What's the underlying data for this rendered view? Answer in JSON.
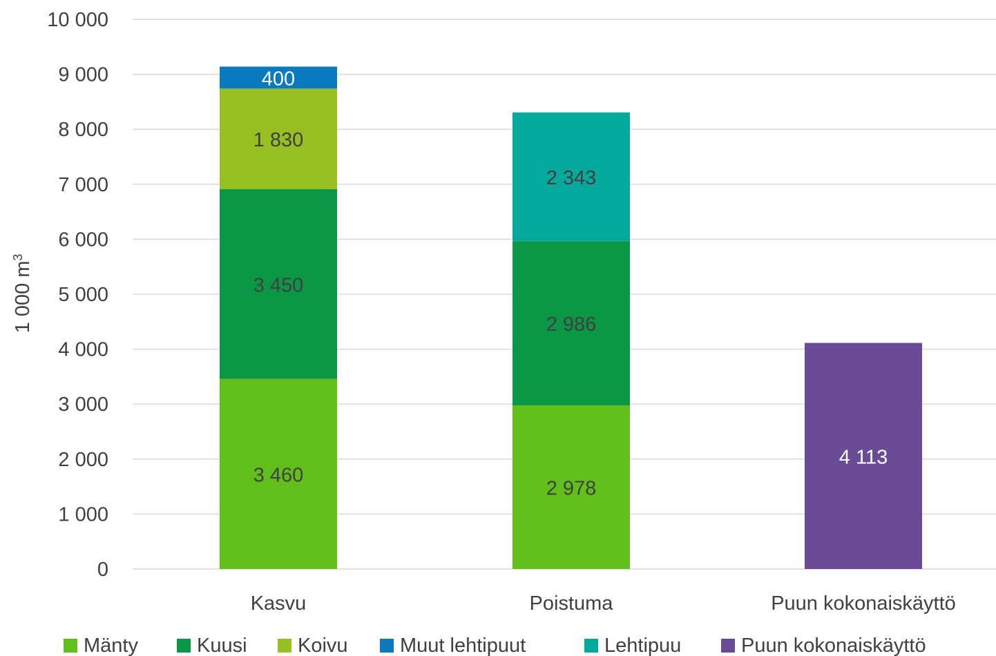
{
  "chart_data": {
    "type": "bar",
    "stacked": true,
    "categories": [
      "Kasvu",
      "Poistuma",
      "Puun kokonaiskäyttö"
    ],
    "ylabel": "1 000 m",
    "ylabel_superscript": "3",
    "ylim": [
      0,
      10000
    ],
    "yticks": [
      0,
      1000,
      2000,
      3000,
      4000,
      5000,
      6000,
      7000,
      8000,
      9000,
      10000
    ],
    "ytick_labels": [
      "0",
      "1 000",
      "2 000",
      "3 000",
      "4 000",
      "5 000",
      "6 000",
      "7 000",
      "8 000",
      "9 000",
      "10 000"
    ],
    "grid": true,
    "legend_position": "bottom",
    "series": [
      {
        "name": "Mänty",
        "color": "#62be1a",
        "label_color": "#404040",
        "values": [
          3460,
          2978,
          null
        ],
        "labels": [
          "3 460",
          "2 978",
          ""
        ]
      },
      {
        "name": "Kuusi",
        "color": "#0a9645",
        "label_color": "#404040",
        "values": [
          3450,
          2986,
          null
        ],
        "labels": [
          "3 450",
          "2 986",
          ""
        ]
      },
      {
        "name": "Koivu",
        "color": "#97bf24",
        "label_color": "#404040",
        "values": [
          1830,
          null,
          null
        ],
        "labels": [
          "1 830",
          "",
          ""
        ]
      },
      {
        "name": "Muut lehtipuut",
        "color": "#0a7abf",
        "label_color": "#ffffff",
        "values": [
          400,
          null,
          null
        ],
        "labels": [
          "400",
          "",
          ""
        ]
      },
      {
        "name": "Lehtipuu",
        "color": "#05a89c",
        "label_color": "#404040",
        "values": [
          null,
          2343,
          null
        ],
        "labels": [
          "",
          "2 343",
          ""
        ]
      },
      {
        "name": "Puun kokonaiskäyttö",
        "color": "#6a4c96",
        "label_color": "#ffffff",
        "values": [
          null,
          null,
          4113
        ],
        "labels": [
          "",
          "",
          "4 113"
        ]
      }
    ]
  }
}
